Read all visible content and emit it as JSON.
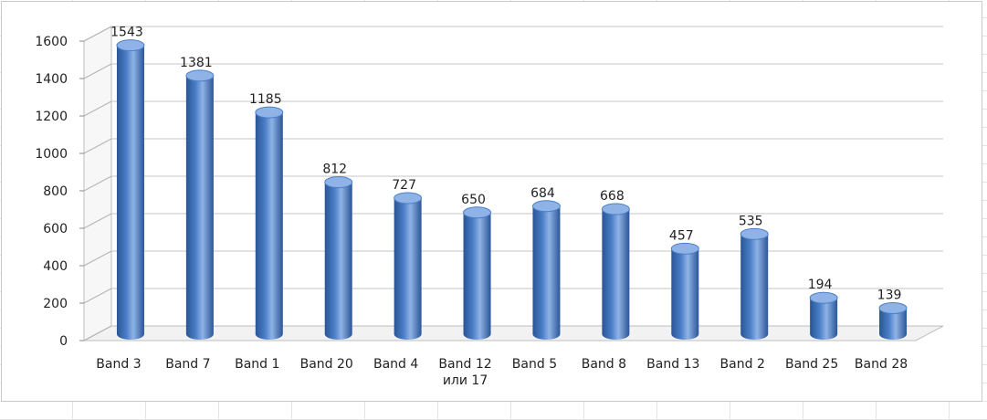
{
  "chart_data": {
    "type": "bar",
    "categories": [
      "Band 3",
      "Band 7",
      "Band 1",
      "Band 20",
      "Band 4",
      "Band 12\nили 17",
      "Band 5",
      "Band 8",
      "Band 13",
      "Band 2",
      "Band 25",
      "Band 28"
    ],
    "values": [
      1543,
      1381,
      1185,
      812,
      727,
      650,
      684,
      668,
      457,
      535,
      194,
      139
    ],
    "data_labels": [
      "1543",
      "1381",
      "1185",
      "812",
      "727",
      "650",
      "684",
      "668",
      "457",
      "535",
      "194",
      "139"
    ],
    "title": "",
    "xlabel": "",
    "ylabel": "",
    "ylim": [
      0,
      1600
    ],
    "yticks": [
      0,
      200,
      400,
      600,
      800,
      1000,
      1200,
      1400,
      1600
    ],
    "grid": true,
    "style": "3d-cylinder",
    "bar_color": "#4a7ec7",
    "bar_color_dark": "#2a5596",
    "bar_color_light": "#8fb3e6"
  }
}
